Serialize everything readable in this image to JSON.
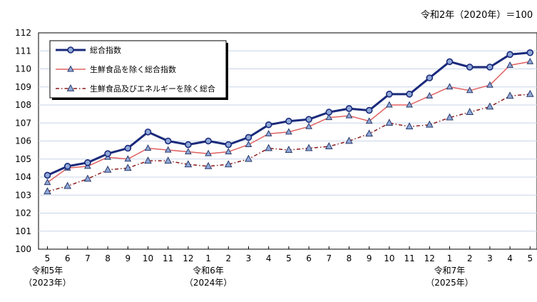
{
  "chart_data": {
    "type": "line",
    "note": "令和2年（2020年）＝100",
    "ylim": [
      100,
      112
    ],
    "y_ticks": [
      100,
      101,
      102,
      103,
      104,
      105,
      106,
      107,
      108,
      109,
      110,
      111,
      112
    ],
    "grid": true,
    "legend_position": "top-left",
    "x": [
      "5",
      "6",
      "7",
      "8",
      "9",
      "10",
      "11",
      "12",
      "1",
      "2",
      "3",
      "4",
      "5",
      "6",
      "7",
      "8",
      "9",
      "10",
      "11",
      "12",
      "1",
      "2",
      "3",
      "4",
      "5"
    ],
    "era_labels": [
      {
        "index": 0,
        "line1": "令和5年",
        "line2": "（2023年）"
      },
      {
        "index": 8,
        "line1": "令和6年",
        "line2": "（2024年）"
      },
      {
        "index": 20,
        "line1": "令和7年",
        "line2": "（2025年）"
      }
    ],
    "series": [
      {
        "name": "総合指数",
        "color": "#1a2a7a",
        "marker": "circle",
        "values": [
          104.1,
          104.6,
          104.8,
          105.3,
          105.6,
          106.5,
          106.0,
          105.8,
          106.0,
          105.8,
          106.2,
          106.9,
          107.1,
          107.2,
          107.6,
          107.8,
          107.7,
          108.6,
          108.6,
          109.5,
          110.4,
          110.1,
          110.1,
          110.8,
          110.9
        ]
      },
      {
        "name": "生鮮食品を除く総合指数",
        "color": "#e06060",
        "marker": "triangle",
        "values": [
          103.7,
          104.5,
          104.6,
          105.1,
          105.0,
          105.6,
          105.5,
          105.4,
          105.3,
          105.4,
          105.8,
          106.4,
          106.5,
          106.8,
          107.3,
          107.4,
          107.1,
          108.0,
          108.0,
          108.5,
          109.0,
          108.8,
          109.1,
          110.2,
          110.4
        ]
      },
      {
        "name": "生鮮食品及びエネルギーを除く総合",
        "color": "#8b1a1a",
        "marker": "triangle",
        "values": [
          103.2,
          103.5,
          103.9,
          104.4,
          104.5,
          104.9,
          104.9,
          104.7,
          104.6,
          104.7,
          105.0,
          105.6,
          105.5,
          105.6,
          105.7,
          106.0,
          106.4,
          107.0,
          106.8,
          106.9,
          107.3,
          107.6,
          107.9,
          108.5,
          108.6
        ]
      }
    ]
  }
}
